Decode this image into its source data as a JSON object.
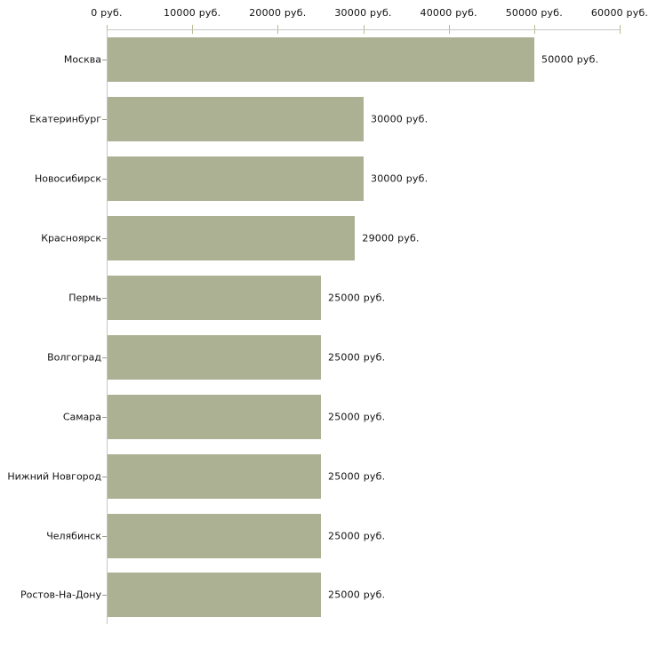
{
  "chart_data": {
    "type": "bar",
    "orientation": "horizontal",
    "title": "",
    "xlabel": "",
    "ylabel": "",
    "categories": [
      "Москва",
      "Екатеринбург",
      "Новосибирск",
      "Красноярск",
      "Пермь",
      "Волгоград",
      "Самара",
      "Нижний Новгород",
      "Челябинск",
      "Ростов-На-Дону"
    ],
    "values": [
      50000,
      30000,
      30000,
      29000,
      25000,
      25000,
      25000,
      25000,
      25000,
      25000
    ],
    "value_labels": [
      "50000 руб.",
      "30000 руб.",
      "30000 руб.",
      "29000 руб.",
      "25000 руб.",
      "25000 руб.",
      "25000 руб.",
      "25000 руб.",
      "25000 руб.",
      "25000 руб."
    ],
    "x_tick_labels": [
      "0 руб.",
      "10000 руб.",
      "20000 руб.",
      "30000 руб.",
      "40000 руб.",
      "50000 руб.",
      "60000 руб."
    ],
    "x_tick_values": [
      0,
      10000,
      20000,
      30000,
      40000,
      50000,
      60000
    ],
    "xlim": [
      0,
      60000
    ],
    "grid": false,
    "legend": false,
    "axis_position": "top",
    "colors": {
      "bar": "#acb194",
      "axis_line": "#c6c6c6",
      "axis_tick": "#b9ba8c",
      "text": "#111111",
      "background": "#ffffff"
    }
  }
}
